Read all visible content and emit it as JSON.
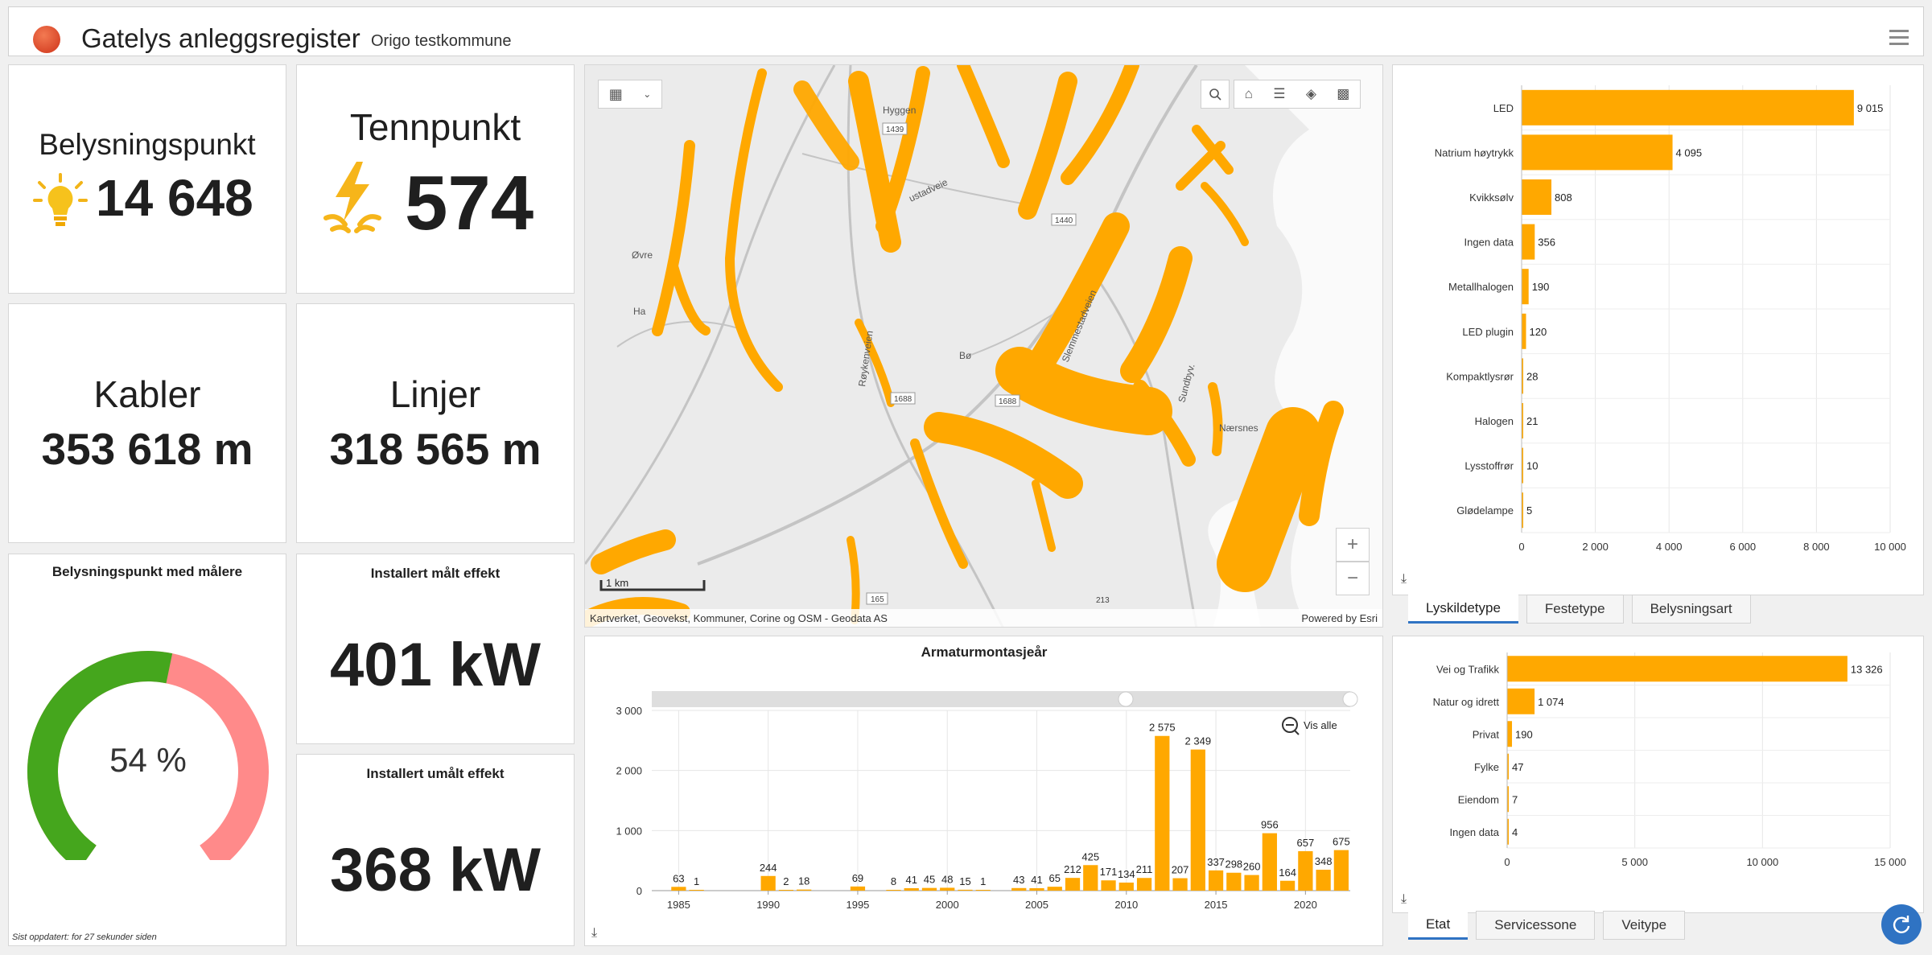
{
  "header": {
    "title": "Gatelys anleggsregister",
    "subtitle": "Origo testkommune"
  },
  "indicators": {
    "belysningspunkt": {
      "label": "Belysningspunkt",
      "value": "14 648"
    },
    "tennpunkt": {
      "label": "Tennpunkt",
      "value": "574"
    },
    "kabler": {
      "label": "Kabler",
      "value": "353 618 m"
    },
    "linjer": {
      "label": "Linjer",
      "value": "318 565 m"
    },
    "installert_malt": {
      "label": "Installert målt effekt",
      "value": "401 kW"
    },
    "installert_umalt": {
      "label": "Installert umålt effekt",
      "value": "368 kW"
    }
  },
  "gauge": {
    "title": "Belysningspunkt med målere",
    "percent": 54,
    "label": "54 %",
    "colors": {
      "filled": "#45a61d",
      "rest": "#ff8a8a"
    }
  },
  "last_updated": "Sist oppdatert: for 27 sekunder siden",
  "map": {
    "place_labels": [
      "Øvre",
      "Bø",
      "Nærsnes",
      "Ha"
    ],
    "road_labels": [
      "Røykenveien",
      "Slemmestadveien",
      "Sundbyv.",
      "Hyggen",
      "ustadveie"
    ],
    "road_numbers": [
      "1439",
      "1440",
      "1688",
      "1688",
      "165",
      "213"
    ],
    "scale": "1 km",
    "attribution": "Kartverket, Geovekst, Kommuner, Corine og OSM - Geodata AS",
    "powered": "Powered by Esri",
    "zoom_in": "+",
    "zoom_out": "−",
    "point_color": "#ffa800"
  },
  "lyskilde_tabs": [
    "Lyskildetype",
    "Festetype",
    "Belysningsart"
  ],
  "etat_tabs": [
    "Etat",
    "Servicessone",
    "Veitype"
  ],
  "bar_color": "#ffa800",
  "chart_data": [
    {
      "type": "bar",
      "orientation": "horizontal",
      "categories": [
        "LED",
        "Natrium høytrykk",
        "Kvikksølv",
        "Ingen data",
        "Metallhalogen",
        "LED plugin",
        "Kompaktlysrør",
        "Halogen",
        "Lysstoffrør",
        "Glødelampe"
      ],
      "values": [
        9015,
        4095,
        808,
        356,
        190,
        120,
        28,
        21,
        10,
        5
      ],
      "labels": [
        "9 015",
        "4 095",
        "808",
        "356",
        "190",
        "120",
        "28",
        "21",
        "10",
        "5"
      ],
      "xlim": [
        0,
        10000
      ],
      "ticks": [
        "0",
        "2 000",
        "4 000",
        "6 000",
        "8 000",
        "10 000"
      ],
      "grid": true
    },
    {
      "type": "bar",
      "orientation": "horizontal",
      "categories": [
        "Vei og Trafikk",
        "Natur og idrett",
        "Privat",
        "Fylke",
        "Eiendom",
        "Ingen data"
      ],
      "values": [
        13326,
        1074,
        190,
        47,
        7,
        4
      ],
      "labels": [
        "13 326",
        "1 074",
        "190",
        "47",
        "7",
        "4"
      ],
      "xlim": [
        0,
        15000
      ],
      "ticks": [
        "0",
        "5 000",
        "10 000",
        "15 000"
      ],
      "grid": true
    },
    {
      "type": "bar",
      "title": "Armaturmontasjeår",
      "x": [
        1985,
        1986,
        1990,
        1991,
        1992,
        1995,
        1997,
        1998,
        1999,
        2000,
        2001,
        2002,
        2004,
        2005,
        2006,
        2007,
        2008,
        2009,
        2010,
        2011,
        2012,
        2013,
        2014,
        2015,
        2016,
        2017,
        2018,
        2019,
        2020,
        2021,
        2022
      ],
      "values": [
        63,
        1,
        244,
        2,
        18,
        69,
        8,
        41,
        45,
        48,
        15,
        1,
        43,
        41,
        65,
        212,
        425,
        171,
        134,
        211,
        2575,
        207,
        2349,
        337,
        298,
        260,
        956,
        164,
        657,
        348,
        675
      ],
      "xticks": [
        "1985",
        "1990",
        "1995",
        "2000",
        "2005",
        "2010",
        "2015",
        "2020"
      ],
      "yticks": [
        "0",
        "1 000",
        "2 000",
        "3 000"
      ],
      "ylim": [
        0,
        3000
      ],
      "xlim": [
        1983.5,
        2022.5
      ],
      "grid": true,
      "zoom_label": "Vis alle"
    }
  ]
}
